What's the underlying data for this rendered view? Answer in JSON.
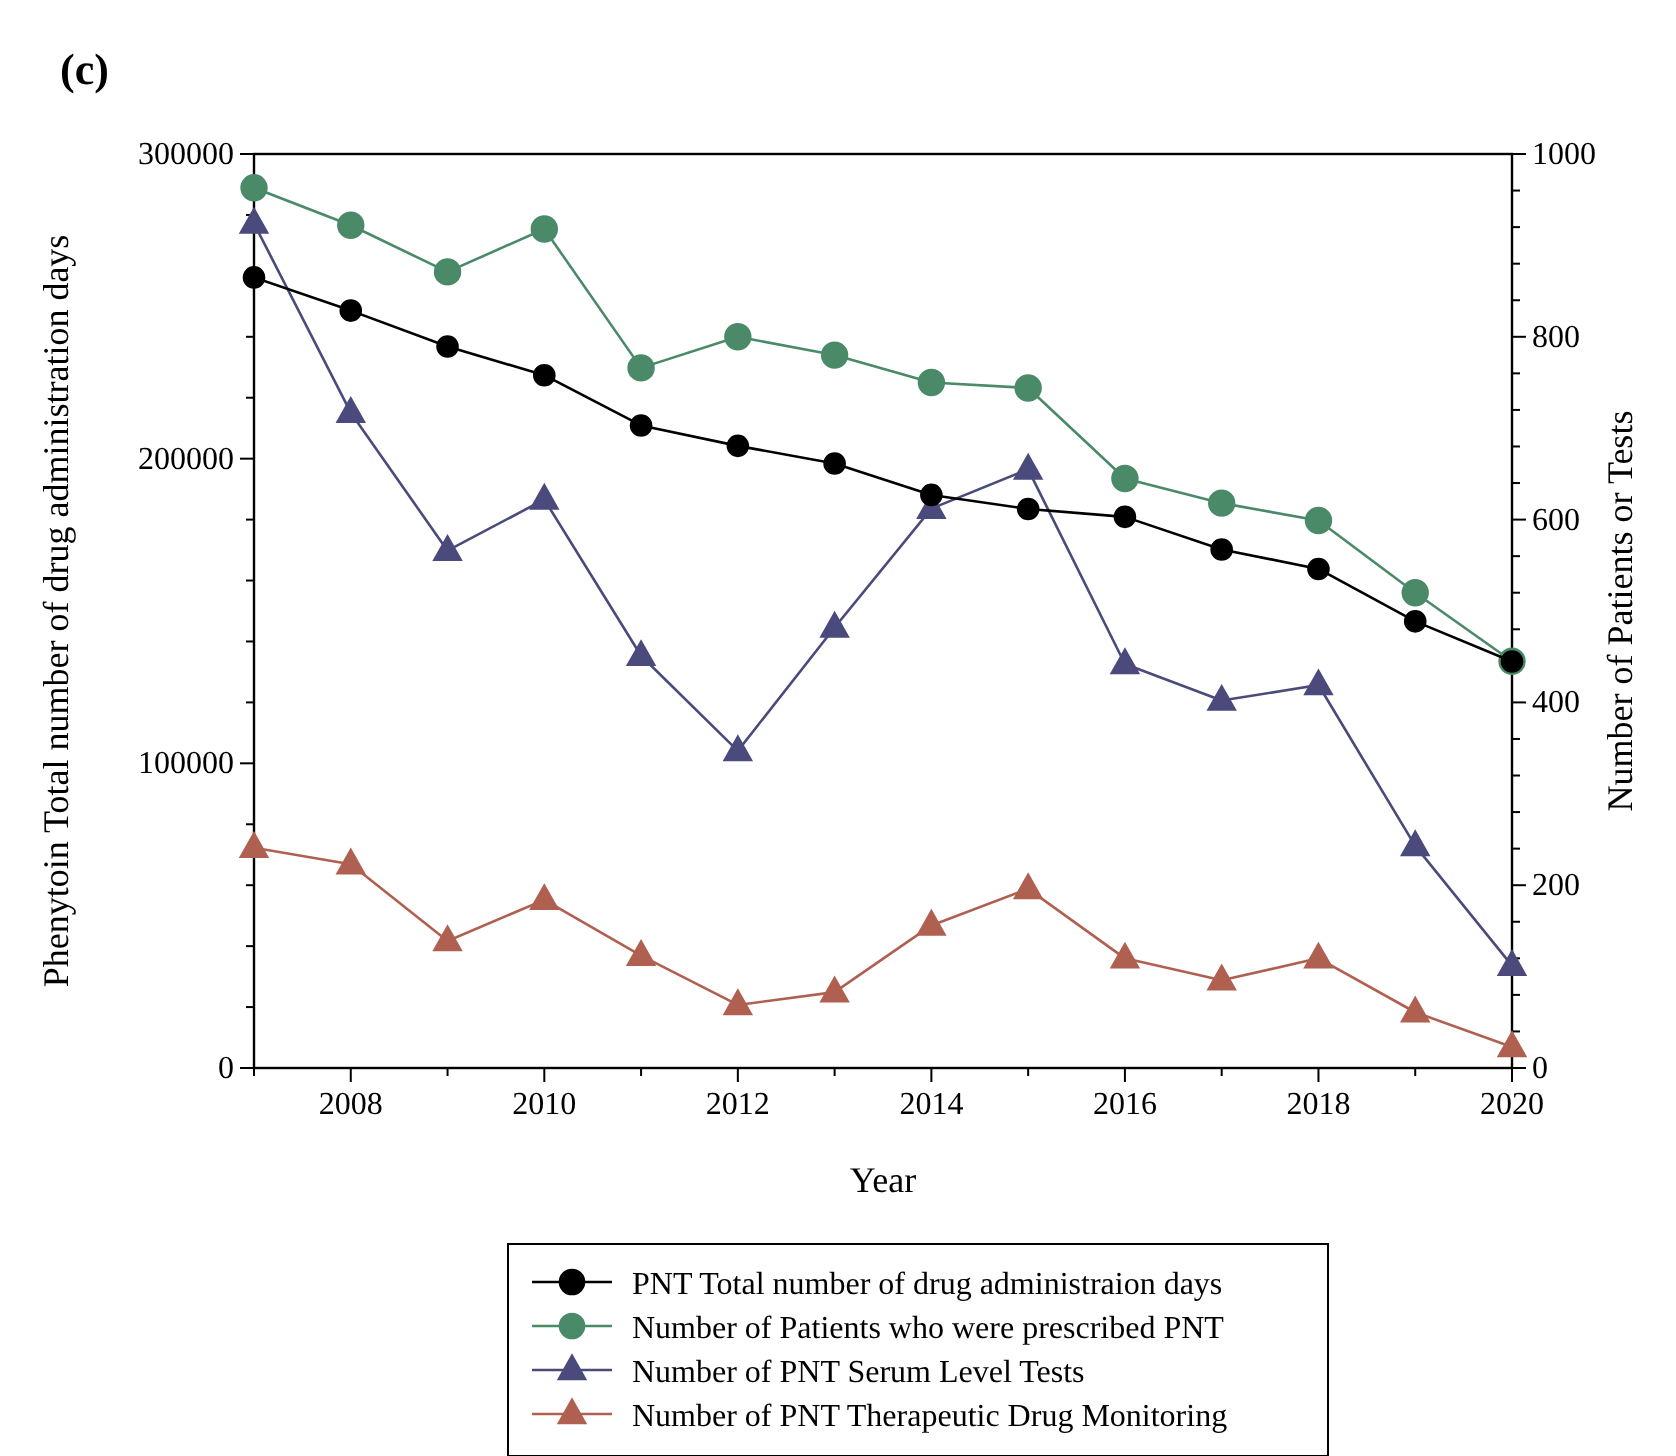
{
  "chart_data": {
    "type": "line",
    "title": "(c)",
    "xlabel": "Year",
    "ylabel": "Phenytoin Total number of drug administration days",
    "y2label": "Number of Patients or Tests",
    "x": [
      2007,
      2008,
      2009,
      2010,
      2011,
      2012,
      2013,
      2014,
      2015,
      2016,
      2017,
      2018,
      2019,
      2020
    ],
    "series": [
      {
        "name": "PNT Total number of drug administraion days",
        "color": "#000000",
        "marker": "circle",
        "values": [
          259500,
          248600,
          236800,
          227400,
          210900,
          204200,
          198400,
          188100,
          183500,
          180900,
          170200,
          163800,
          146600,
          133400
        ]
      },
      {
        "name": "Number of Patients who were prescribed PNT",
        "color": "#4a8a68",
        "marker": "circle",
        "axis": "y2",
        "values": [
          963,
          922,
          871,
          918,
          766,
          800,
          780,
          750,
          744,
          645,
          618,
          599,
          520,
          445
        ]
      },
      {
        "name": "Number of PNT Serum Level Tests",
        "color": "#4a4a7c",
        "marker": "triangle",
        "axis": "y2",
        "values": [
          924,
          717,
          566,
          622,
          451,
          347,
          482,
          612,
          655,
          442,
          402,
          419,
          243,
          112
        ]
      },
      {
        "name": "Number of PNT Therapeutic Drug Monitoring",
        "color": "#b06050",
        "marker": "triangle",
        "axis": "y2",
        "values": [
          241,
          223,
          139,
          184,
          123,
          69,
          83,
          156,
          196,
          120,
          96,
          120,
          61,
          23
        ]
      }
    ],
    "xlim": [
      2007,
      2020
    ],
    "xticks": [
      {
        "value": 2007,
        "label": null
      },
      2008,
      {
        "value": 2009,
        "label": null
      },
      2010,
      {
        "value": 2011,
        "label": null
      },
      2012,
      {
        "value": 2013,
        "label": null
      },
      2014,
      {
        "value": 2015,
        "label": null
      },
      2016,
      {
        "value": 2017,
        "label": null
      },
      2018,
      {
        "value": 2019,
        "label": null
      },
      2020
    ],
    "ylim": [
      0,
      300000
    ],
    "yticks": [
      0,
      {
        "value": 20000,
        "label": null
      },
      {
        "value": 40000,
        "label": null
      },
      {
        "value": 60000,
        "label": null
      },
      {
        "value": 80000,
        "label": null
      },
      100000,
      {
        "value": 120000,
        "label": null
      },
      {
        "value": 140000,
        "label": null
      },
      {
        "value": 160000,
        "label": null
      },
      {
        "value": 180000,
        "label": null
      },
      200000,
      {
        "value": 220000,
        "label": null
      },
      {
        "value": 240000,
        "label": null
      },
      {
        "value": 260000,
        "label": null
      },
      {
        "value": 280000,
        "label": null
      },
      300000
    ],
    "y2lim": [
      0,
      1000
    ],
    "y2ticks": [
      0,
      {
        "value": 40,
        "label": null
      },
      {
        "value": 80,
        "label": null
      },
      {
        "value": 120,
        "label": null
      },
      {
        "value": 160,
        "label": null
      },
      200,
      {
        "value": 240,
        "label": null
      },
      {
        "value": 280,
        "label": null
      },
      {
        "value": 320,
        "label": null
      },
      {
        "value": 360,
        "label": null
      },
      400,
      {
        "value": 440,
        "label": null
      },
      {
        "value": 480,
        "label": null
      },
      {
        "value": 520,
        "label": null
      },
      {
        "value": 560,
        "label": null
      },
      600,
      {
        "value": 640,
        "label": null
      },
      {
        "value": 680,
        "label": null
      },
      {
        "value": 720,
        "label": null
      },
      {
        "value": 760,
        "label": null
      },
      800,
      {
        "value": 840,
        "label": null
      },
      {
        "value": 880,
        "label": null
      },
      {
        "value": 920,
        "label": null
      },
      {
        "value": 960,
        "label": null
      },
      1000
    ],
    "grid": false,
    "legend": "bottom",
    "line_style": "solid"
  }
}
